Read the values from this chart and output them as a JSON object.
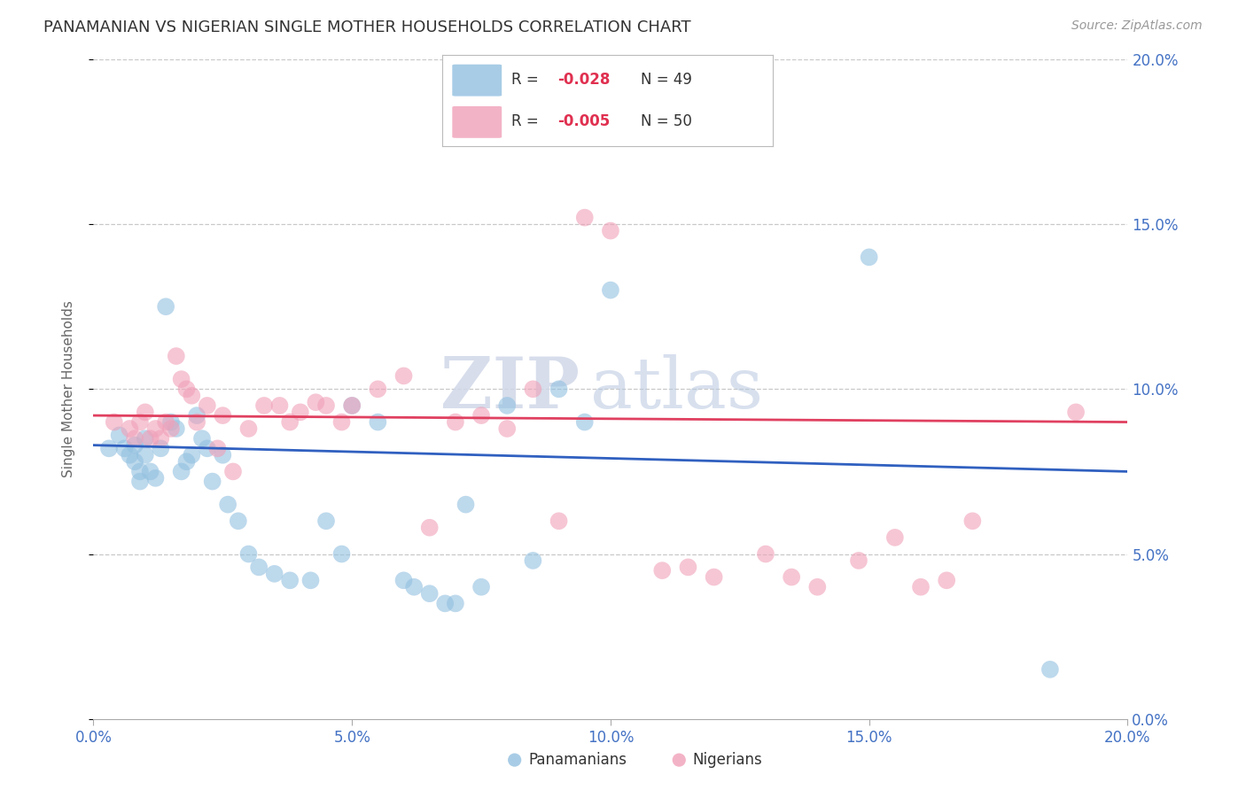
{
  "title": "PANAMANIAN VS NIGERIAN SINGLE MOTHER HOUSEHOLDS CORRELATION CHART",
  "source": "Source: ZipAtlas.com",
  "ylabel": "Single Mother Households",
  "xlim": [
    0.0,
    0.2
  ],
  "ylim": [
    0.0,
    0.2
  ],
  "xtick_vals": [
    0.0,
    0.05,
    0.1,
    0.15,
    0.2
  ],
  "ytick_vals": [
    0.0,
    0.05,
    0.1,
    0.15,
    0.2
  ],
  "background_color": "#ffffff",
  "grid_color": "#c8c8c8",
  "blue_color": "#92c0e0",
  "pink_color": "#f0a0b8",
  "blue_line_color": "#3060c0",
  "pink_line_color": "#e04060",
  "axis_label_color": "#4472c4",
  "legend_R_blue": "-0.028",
  "legend_N_blue": "49",
  "legend_R_pink": "-0.005",
  "legend_N_pink": "50",
  "watermark_zip": "ZIP",
  "watermark_atlas": "atlas",
  "blue_points_x": [
    0.003,
    0.005,
    0.006,
    0.007,
    0.008,
    0.008,
    0.009,
    0.009,
    0.01,
    0.01,
    0.011,
    0.012,
    0.013,
    0.014,
    0.015,
    0.016,
    0.017,
    0.018,
    0.019,
    0.02,
    0.021,
    0.022,
    0.023,
    0.025,
    0.026,
    0.028,
    0.03,
    0.032,
    0.035,
    0.038,
    0.042,
    0.045,
    0.048,
    0.05,
    0.055,
    0.06,
    0.062,
    0.065,
    0.068,
    0.07,
    0.072,
    0.075,
    0.08,
    0.085,
    0.09,
    0.095,
    0.1,
    0.15,
    0.185
  ],
  "blue_points_y": [
    0.082,
    0.086,
    0.082,
    0.08,
    0.078,
    0.083,
    0.075,
    0.072,
    0.085,
    0.08,
    0.075,
    0.073,
    0.082,
    0.125,
    0.09,
    0.088,
    0.075,
    0.078,
    0.08,
    0.092,
    0.085,
    0.082,
    0.072,
    0.08,
    0.065,
    0.06,
    0.05,
    0.046,
    0.044,
    0.042,
    0.042,
    0.06,
    0.05,
    0.095,
    0.09,
    0.042,
    0.04,
    0.038,
    0.035,
    0.035,
    0.065,
    0.04,
    0.095,
    0.048,
    0.1,
    0.09,
    0.13,
    0.14,
    0.015
  ],
  "pink_points_x": [
    0.004,
    0.007,
    0.008,
    0.009,
    0.01,
    0.011,
    0.012,
    0.013,
    0.014,
    0.015,
    0.016,
    0.017,
    0.018,
    0.019,
    0.02,
    0.022,
    0.024,
    0.025,
    0.027,
    0.03,
    0.033,
    0.036,
    0.038,
    0.04,
    0.043,
    0.045,
    0.048,
    0.05,
    0.055,
    0.06,
    0.065,
    0.07,
    0.075,
    0.08,
    0.085,
    0.09,
    0.095,
    0.1,
    0.11,
    0.115,
    0.12,
    0.13,
    0.135,
    0.14,
    0.148,
    0.155,
    0.16,
    0.165,
    0.17,
    0.19
  ],
  "pink_points_y": [
    0.09,
    0.088,
    0.085,
    0.09,
    0.093,
    0.085,
    0.088,
    0.085,
    0.09,
    0.088,
    0.11,
    0.103,
    0.1,
    0.098,
    0.09,
    0.095,
    0.082,
    0.092,
    0.075,
    0.088,
    0.095,
    0.095,
    0.09,
    0.093,
    0.096,
    0.095,
    0.09,
    0.095,
    0.1,
    0.104,
    0.058,
    0.09,
    0.092,
    0.088,
    0.1,
    0.06,
    0.152,
    0.148,
    0.045,
    0.046,
    0.043,
    0.05,
    0.043,
    0.04,
    0.048,
    0.055,
    0.04,
    0.042,
    0.06,
    0.093
  ],
  "blue_line_x0": 0.0,
  "blue_line_x1": 0.2,
  "blue_line_y0": 0.083,
  "blue_line_y1": 0.075,
  "pink_line_x0": 0.0,
  "pink_line_x1": 0.2,
  "pink_line_y0": 0.092,
  "pink_line_y1": 0.09
}
